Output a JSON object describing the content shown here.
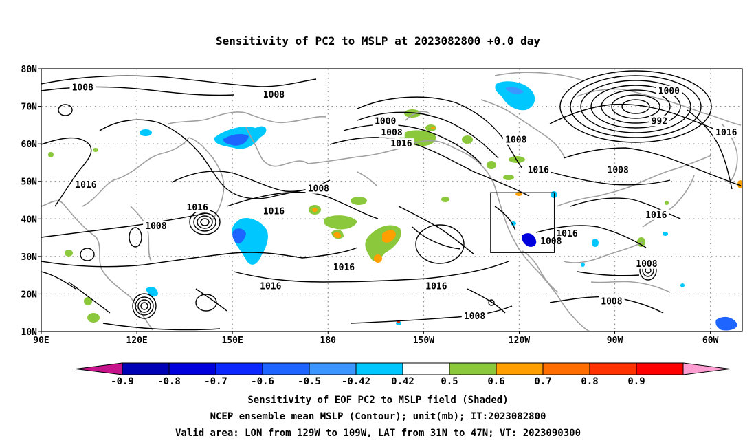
{
  "title": "Sensitivity of PC2 to MSLP at 2023082800 +0.0 day",
  "map": {
    "lat_labels": [
      "80N",
      "70N",
      "60N",
      "50N",
      "40N",
      "30N",
      "20N",
      "10N"
    ],
    "lon_labels": [
      "90E",
      "120E",
      "150E",
      "180",
      "150W",
      "120W",
      "90W",
      "60W"
    ],
    "lat_range": [
      10,
      80
    ],
    "lon_range": [
      90,
      310
    ],
    "gridlines": true
  },
  "contour_labels": [
    {
      "text": "1008",
      "lon": 103,
      "lat": 75
    },
    {
      "text": "1008",
      "lon": 163,
      "lat": 73
    },
    {
      "text": "1000",
      "lon": 198,
      "lat": 66
    },
    {
      "text": "1008",
      "lon": 200,
      "lat": 63
    },
    {
      "text": "1016",
      "lon": 203,
      "lat": 60
    },
    {
      "text": "1008",
      "lon": 239,
      "lat": 61
    },
    {
      "text": "1000",
      "lon": 287,
      "lat": 74
    },
    {
      "text": "992",
      "lon": 284,
      "lat": 66
    },
    {
      "text": "1016",
      "lon": 305,
      "lat": 63
    },
    {
      "text": "1016",
      "lon": 104,
      "lat": 49
    },
    {
      "text": "1016",
      "lon": 139,
      "lat": 43
    },
    {
      "text": "1008",
      "lon": 177,
      "lat": 48
    },
    {
      "text": "1016",
      "lon": 163,
      "lat": 42
    },
    {
      "text": "1008",
      "lon": 126,
      "lat": 38
    },
    {
      "text": "1016",
      "lon": 246,
      "lat": 53
    },
    {
      "text": "1008",
      "lon": 271,
      "lat": 53
    },
    {
      "text": "1016",
      "lon": 283,
      "lat": 41
    },
    {
      "text": "1016",
      "lon": 255,
      "lat": 36
    },
    {
      "text": "1008",
      "lon": 250,
      "lat": 34
    },
    {
      "text": "1016",
      "lon": 185,
      "lat": 27
    },
    {
      "text": "1016",
      "lon": 162,
      "lat": 22
    },
    {
      "text": "1016",
      "lon": 214,
      "lat": 22
    },
    {
      "text": "1008",
      "lon": 280,
      "lat": 28
    },
    {
      "text": "1008",
      "lon": 269,
      "lat": 18
    },
    {
      "text": "1008",
      "lon": 226,
      "lat": 14
    }
  ],
  "valid_area_box": {
    "lon_west": 231,
    "lon_east": 251,
    "lat_south": 31,
    "lat_north": 47
  },
  "colorbar": {
    "labels": [
      "-0.9",
      "-0.8",
      "-0.7",
      "-0.6",
      "-0.5",
      "-0.42",
      "0.42",
      "0.5",
      "0.6",
      "0.7",
      "0.8",
      "0.9"
    ],
    "colors": [
      "#0000b4",
      "#0000dc",
      "#0a28ff",
      "#1e64ff",
      "#3c96ff",
      "#00c8ff",
      "#ffffff",
      "#8cc83c",
      "#ffa000",
      "#ff6e00",
      "#ff3200",
      "#ff0000"
    ],
    "low_extend_color": "#c8148c",
    "high_extend_color": "#ff9ed2"
  },
  "footer": {
    "line1": "Sensitivity of EOF PC2 to MSLP field (Shaded)",
    "line2": "NCEP ensemble mean MSLP (Contour); unit(mb); IT:2023082800",
    "line3": "Valid area: LON from 129W to 109W, LAT from 31N to 47N; VT: 2023090300"
  }
}
